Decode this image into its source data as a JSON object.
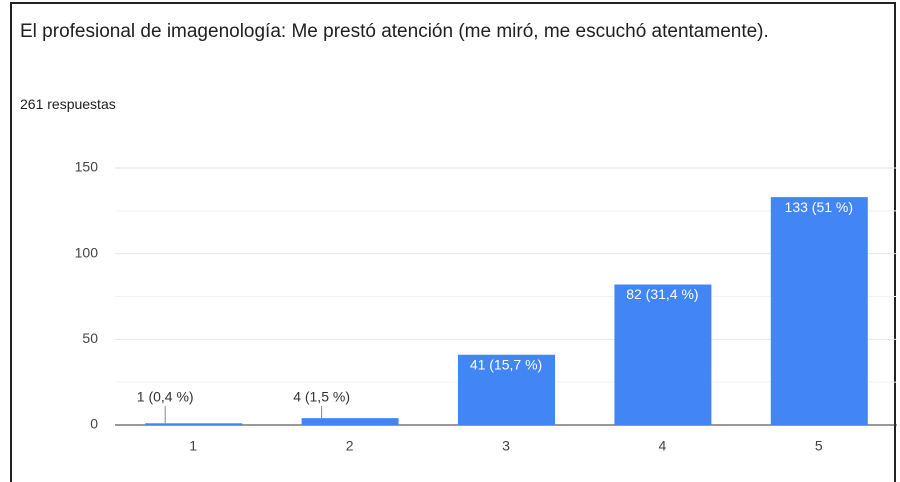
{
  "chart_data": {
    "type": "bar",
    "title": "El profesional de imagenología: Me prestó atención (me miró, me escuchó atentamente).",
    "subtitle": "261 respuestas",
    "categories": [
      "1",
      "2",
      "3",
      "4",
      "5"
    ],
    "values": [
      1,
      4,
      41,
      82,
      133
    ],
    "value_labels": [
      "1 (0,4 %)",
      "4 (1,5 %)",
      "41 (15,7 %)",
      "82 (31,4 %)",
      "133 (51 %)"
    ],
    "color": "#4285f4",
    "ylim": [
      0,
      150
    ],
    "yticks": [
      0,
      50,
      100,
      150
    ],
    "minor_yticks": [
      25,
      75,
      125
    ],
    "grid": true
  }
}
